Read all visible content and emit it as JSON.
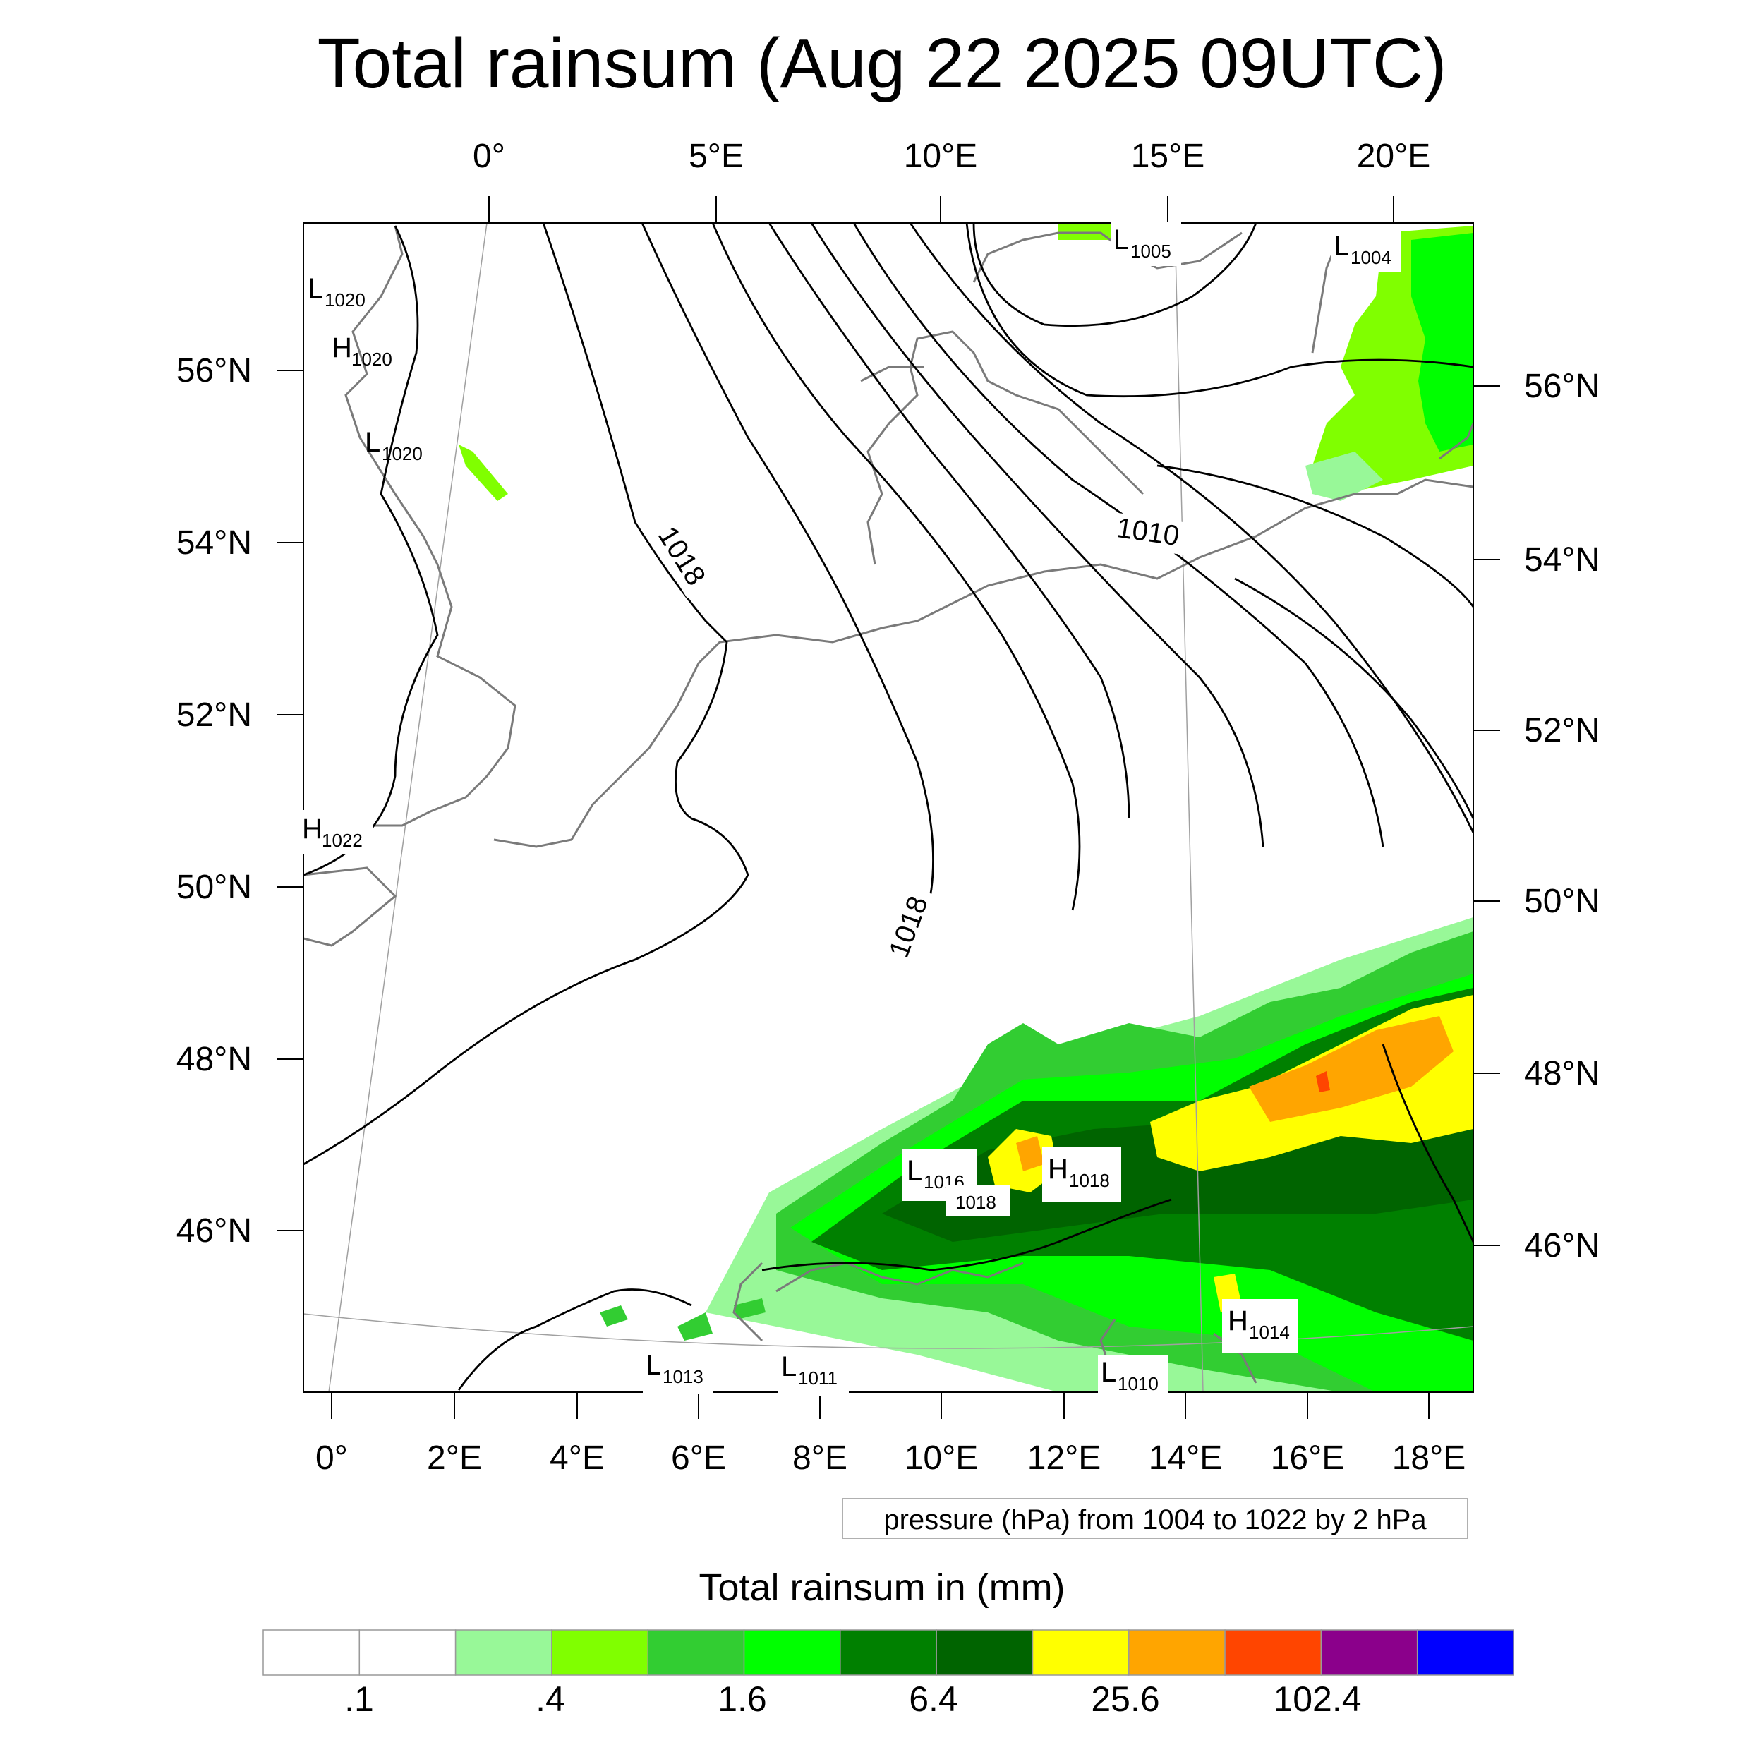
{
  "title": "Total rainsum (Aug 22 2025 09UTC)",
  "top_lon_labels": [
    "0°",
    "5°E",
    "10°E",
    "15°E",
    "20°E"
  ],
  "bottom_lon_labels": [
    "0°",
    "2°E",
    "4°E",
    "6°E",
    "8°E",
    "10°E",
    "12°E",
    "14°E",
    "16°E",
    "18°E"
  ],
  "left_lat_labels": [
    "56°N",
    "54°N",
    "52°N",
    "50°N",
    "48°N",
    "46°N"
  ],
  "right_lat_labels": [
    "56°N",
    "54°N",
    "52°N",
    "50°N",
    "48°N",
    "46°N"
  ],
  "isobar_labels": [
    "1018",
    "1018",
    "1010"
  ],
  "pressure_centers": [
    {
      "letter": "L",
      "value": "1020"
    },
    {
      "letter": "H",
      "value": "1020"
    },
    {
      "letter": "L",
      "value": "1020"
    },
    {
      "letter": "H",
      "value": "1022"
    },
    {
      "letter": "L",
      "value": "1005"
    },
    {
      "letter": "L",
      "value": "1004"
    },
    {
      "letter": "L",
      "value": "1016"
    },
    {
      "letter": "",
      "value": "1018"
    },
    {
      "letter": "H",
      "value": "1018"
    },
    {
      "letter": "H",
      "value": "1014"
    },
    {
      "letter": "L",
      "value": "1013"
    },
    {
      "letter": "L",
      "value": "1011"
    },
    {
      "letter": "L",
      "value": "1010"
    }
  ],
  "pressure_note": "pressure (hPa) from 1004 to 1022 by 2 hPa",
  "colorbar": {
    "title": "Total rainsum in (mm)",
    "colors": [
      "#ffffff",
      "#ffffff",
      "#98f898",
      "#80ff00",
      "#32cd32",
      "#00ff00",
      "#008000",
      "#006400",
      "#ffff00",
      "#ffa500",
      "#ff4500",
      "#8b008b",
      "#0000ff"
    ],
    "tick_labels": [
      ".1",
      ".4",
      "1.6",
      "6.4",
      "25.6",
      "102.4"
    ]
  }
}
